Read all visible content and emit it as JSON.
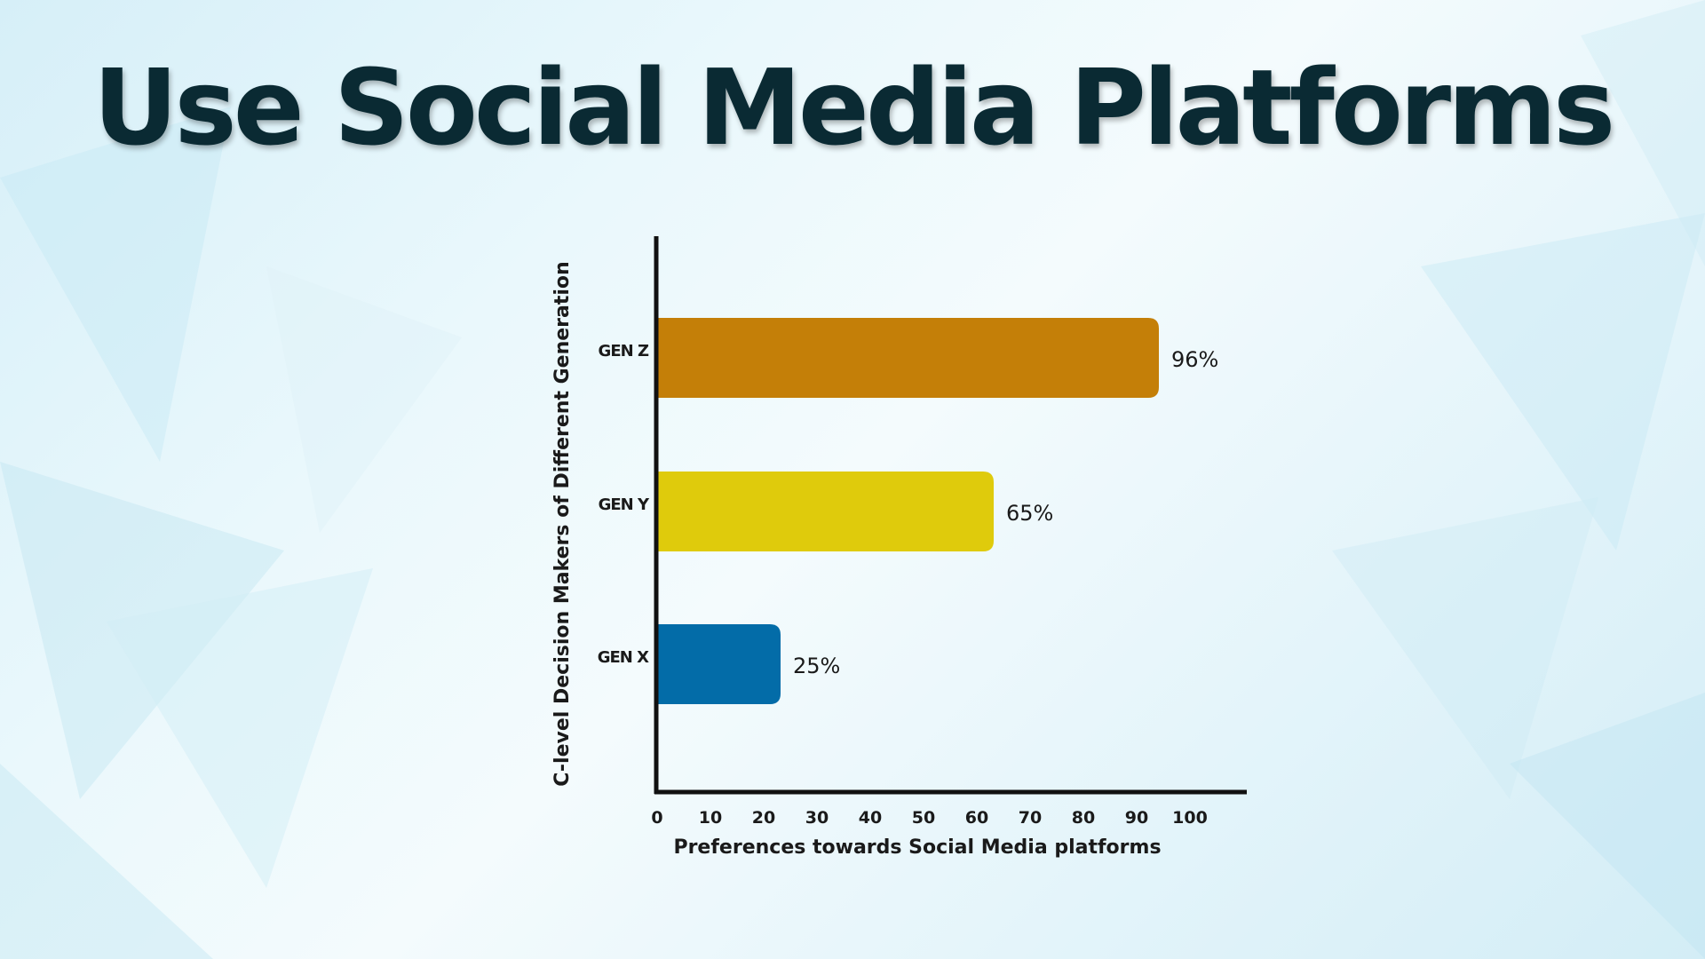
{
  "title": "Use Social Media Platforms",
  "colors": {
    "title": "#0a2a33",
    "axis": "#111111",
    "background": "#e6f6fb"
  },
  "chart_data": {
    "type": "bar",
    "orientation": "horizontal",
    "title": "",
    "categories": [
      "GEN Z",
      "GEN Y",
      "GEN X"
    ],
    "values": [
      96,
      65,
      25
    ],
    "data_labels": [
      "96%",
      "65%",
      "25%"
    ],
    "bar_colors": [
      "#c47f08",
      "#dfcb0c",
      "#036ca8"
    ],
    "xlabel": "Preferences towards Social Media platforms",
    "ylabel": "C-level Decision Makers of Different Generation",
    "xlim": [
      0,
      100
    ],
    "x_ticks": [
      0,
      10,
      20,
      30,
      40,
      50,
      60,
      70,
      80,
      90,
      100
    ],
    "grid": false,
    "legend": "none"
  }
}
